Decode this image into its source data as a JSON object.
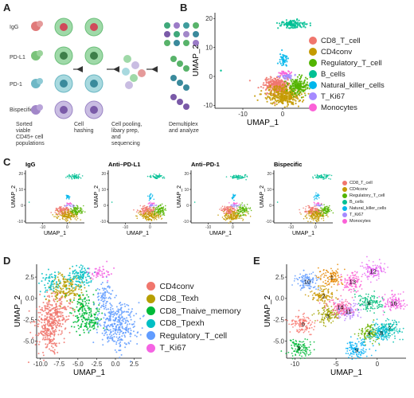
{
  "panels": {
    "a": {
      "letter": "A"
    },
    "b": {
      "letter": "B"
    },
    "c": {
      "letter": "C"
    },
    "d": {
      "letter": "D"
    },
    "e": {
      "letter": "E"
    }
  },
  "panelA": {
    "conditions": [
      "IgG",
      "PD-L1",
      "PD-1",
      "Bispecific"
    ],
    "steps": [
      "Sorted viable CD45+ cell populations",
      "Cell hashing",
      "Cell pooling, libary prep, and sequencing",
      "Demultiplex and analyze"
    ]
  },
  "panelB": {
    "xlabel": "UMAP_1",
    "ylabel": "UMAP_2",
    "xticks": [
      "-10",
      "0"
    ],
    "yticks": [
      "20",
      "10",
      "0",
      "-10"
    ],
    "legend": [
      {
        "label": "CD8_T_cell",
        "color": "#F0766D"
      },
      {
        "label": "CD4conv",
        "color": "#C49A00"
      },
      {
        "label": "Regulatory_T_cell",
        "color": "#53B400"
      },
      {
        "label": "B_cells",
        "color": "#00C094"
      },
      {
        "label": "Natural_killer_cells",
        "color": "#00B6EB"
      },
      {
        "label": "T_Ki67",
        "color": "#A58AFF"
      },
      {
        "label": "Monocytes",
        "color": "#FB61D7"
      }
    ]
  },
  "panelC": {
    "titles": [
      "IgG",
      "Anti–PD-L1",
      "Anti–PD-1",
      "Bispecific"
    ],
    "xlabel": "UMAP_1",
    "ylabel": "UMAP_2",
    "xticks": [
      "-10",
      "0"
    ],
    "yticks": [
      "20",
      "10",
      "0",
      "-10"
    ]
  },
  "panelD": {
    "xlabel": "UMAP_1",
    "ylabel": "UMAP_2",
    "xticks": [
      "-10.0",
      "-7.5",
      "-5.0",
      "-2.5",
      "0.0",
      "2.5"
    ],
    "yticks": [
      "2.5",
      "0.0",
      "-2.5",
      "-5.0"
    ],
    "legend": [
      {
        "label": "CD4conv",
        "color": "#F0766D"
      },
      {
        "label": "CD8_Texh",
        "color": "#B79F00"
      },
      {
        "label": "CD8_Tnaive_memory",
        "color": "#00BA38"
      },
      {
        "label": "CD8_Tpexh",
        "color": "#00BFC4"
      },
      {
        "label": "Regulatory_T_cell",
        "color": "#619CFF"
      },
      {
        "label": "T_Ki67",
        "color": "#F564E3"
      }
    ]
  },
  "panelE": {
    "xlabel": "UMAP_1",
    "ylabel": "UMAP_2",
    "xticks": [
      "-10",
      "-5",
      "0"
    ],
    "yticks": [
      "2.5",
      "0.0",
      "-2.5",
      "-5.0"
    ],
    "cluster_labels": [
      "0",
      "1",
      "2",
      "3",
      "4",
      "5",
      "6",
      "7",
      "8",
      "9",
      "10",
      "11",
      "12",
      "13",
      "14",
      "16"
    ]
  },
  "chart_data": [
    {
      "type": "scatter",
      "panel": "B",
      "xlabel": "UMAP_1",
      "ylabel": "UMAP_2",
      "xlim": [
        -17,
        7
      ],
      "ylim": [
        -11,
        22
      ],
      "series": [
        {
          "name": "CD8_T_cell",
          "center": [
            -1.5,
            -3
          ]
        },
        {
          "name": "CD4conv",
          "center": [
            0,
            -6
          ]
        },
        {
          "name": "Regulatory_T_cell",
          "center": [
            4,
            -3
          ]
        },
        {
          "name": "B_cells",
          "center": [
            2,
            18
          ]
        },
        {
          "name": "Natural_killer_cells",
          "center": [
            0,
            6
          ]
        },
        {
          "name": "T_Ki67",
          "center": [
            1,
            0.5
          ]
        },
        {
          "name": "Monocytes",
          "center": [
            1,
            1
          ]
        }
      ]
    },
    {
      "type": "scatter",
      "panel": "D",
      "xlabel": "UMAP_1",
      "ylabel": "UMAP_2",
      "xlim": [
        -10.5,
        3.5
      ],
      "ylim": [
        -7,
        4
      ],
      "series": [
        {
          "name": "CD4conv",
          "center": [
            -8.5,
            -2.5
          ]
        },
        {
          "name": "CD8_Texh",
          "center": [
            -6.5,
            1
          ]
        },
        {
          "name": "CD8_Tnaive_memory",
          "center": [
            -4.5,
            -1.5
          ]
        },
        {
          "name": "CD8_Tpexh",
          "center": [
            -4.5,
            2.5
          ]
        },
        {
          "name": "Regulatory_T_cell",
          "center": [
            0,
            -3
          ]
        },
        {
          "name": "T_Ki67",
          "center": [
            -2,
            3
          ]
        }
      ]
    },
    {
      "type": "scatter",
      "panel": "E",
      "xlabel": "UMAP_1",
      "ylabel": "UMAP_2",
      "xlim": [
        -11,
        3.5
      ],
      "ylim": [
        -7,
        4
      ],
      "clusters": [
        {
          "name": "0",
          "center": [
            -9,
            -3
          ]
        },
        {
          "name": "1",
          "center": [
            -5.5,
            2.5
          ]
        },
        {
          "name": "2",
          "center": [
            -6.5,
            0.3
          ]
        },
        {
          "name": "3",
          "center": [
            -6,
            -2
          ]
        },
        {
          "name": "4",
          "center": [
            -1,
            -4
          ]
        },
        {
          "name": "5",
          "center": [
            -9.5,
            -5.8
          ]
        },
        {
          "name": "6",
          "center": [
            -1,
            -0.5
          ]
        },
        {
          "name": "7",
          "center": [
            1.5,
            -3.5
          ]
        },
        {
          "name": "8",
          "center": [
            0.5,
            -4
          ]
        },
        {
          "name": "9",
          "center": [
            -2.5,
            -6
          ]
        },
        {
          "name": "10",
          "center": [
            -8.5,
            2
          ]
        },
        {
          "name": "11",
          "center": [
            -3.5,
            -1.5
          ]
        },
        {
          "name": "12",
          "center": [
            -0.5,
            3.2
          ]
        },
        {
          "name": "13",
          "center": [
            -3,
            2
          ]
        },
        {
          "name": "14",
          "center": [
            -4.5,
            -1
          ]
        },
        {
          "name": "16",
          "center": [
            2,
            -0.5
          ]
        }
      ]
    }
  ]
}
